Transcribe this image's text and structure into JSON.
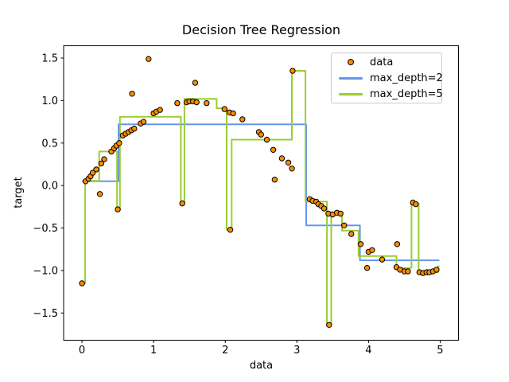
{
  "figure": {
    "title": "Decision Tree Regression",
    "xlabel": "data",
    "ylabel": "target"
  },
  "legend": {
    "position": "upper right",
    "items": [
      {
        "label": "data",
        "kind": "marker",
        "color": "#ff8c00",
        "edge_color": "#000000"
      },
      {
        "label": "max_depth=2",
        "kind": "line",
        "color": "#6495ed"
      },
      {
        "label": "max_depth=5",
        "kind": "line",
        "color": "#9acd32"
      }
    ]
  },
  "axes": {
    "xlim": [
      -0.256,
      5.256
    ],
    "ylim": [
      -1.82,
      1.645
    ],
    "spine_color": "#000000",
    "xticks": [
      {
        "value": 0,
        "label": "0"
      },
      {
        "value": 1,
        "label": "1"
      },
      {
        "value": 2,
        "label": "2"
      },
      {
        "value": 3,
        "label": "3"
      },
      {
        "value": 4,
        "label": "4"
      },
      {
        "value": 5,
        "label": "5"
      }
    ],
    "yticks": [
      {
        "value": 1.5,
        "label": "1.5"
      },
      {
        "value": 1.0,
        "label": "1.0"
      },
      {
        "value": 0.5,
        "label": "0.5"
      },
      {
        "value": 0.0,
        "label": "0.0"
      },
      {
        "value": -0.5,
        "label": "−0.5"
      },
      {
        "value": -1.0,
        "label": "−1.0"
      },
      {
        "value": -1.5,
        "label": "−1.5"
      }
    ]
  },
  "chart_data": {
    "type": "scatter",
    "title": "Decision Tree Regression",
    "xlabel": "data",
    "ylabel": "target",
    "grid": false,
    "legend_position": "upper right",
    "scatter": {
      "name": "data",
      "color": "#ff8c00",
      "edge_color": "#000000",
      "points": [
        [
          0.0,
          -1.15
        ],
        [
          0.05,
          0.05
        ],
        [
          0.09,
          0.08
        ],
        [
          0.12,
          0.11
        ],
        [
          0.15,
          0.15
        ],
        [
          0.2,
          0.19
        ],
        [
          0.25,
          -0.1
        ],
        [
          0.27,
          0.26
        ],
        [
          0.31,
          0.31
        ],
        [
          0.41,
          0.4
        ],
        [
          0.45,
          0.44
        ],
        [
          0.48,
          0.47
        ],
        [
          0.5,
          -0.28
        ],
        [
          0.52,
          0.5
        ],
        [
          0.57,
          0.59
        ],
        [
          0.61,
          0.61
        ],
        [
          0.65,
          0.63
        ],
        [
          0.69,
          0.65
        ],
        [
          0.7,
          1.08
        ],
        [
          0.73,
          0.67
        ],
        [
          0.82,
          0.73
        ],
        [
          0.86,
          0.75
        ],
        [
          0.93,
          1.49
        ],
        [
          1.0,
          0.85
        ],
        [
          1.04,
          0.87
        ],
        [
          1.09,
          0.89
        ],
        [
          1.33,
          0.97
        ],
        [
          1.4,
          -0.21
        ],
        [
          1.46,
          0.98
        ],
        [
          1.5,
          0.99
        ],
        [
          1.55,
          0.99
        ],
        [
          1.58,
          1.21
        ],
        [
          1.6,
          0.98
        ],
        [
          1.74,
          0.97
        ],
        [
          1.99,
          0.9
        ],
        [
          2.06,
          0.86
        ],
        [
          2.07,
          -0.52
        ],
        [
          2.11,
          0.85
        ],
        [
          2.24,
          0.78
        ],
        [
          2.47,
          0.63
        ],
        [
          2.5,
          0.6
        ],
        [
          2.58,
          0.54
        ],
        [
          2.67,
          0.42
        ],
        [
          2.69,
          0.07
        ],
        [
          2.79,
          0.32
        ],
        [
          2.88,
          0.27
        ],
        [
          2.93,
          0.2
        ],
        [
          2.94,
          1.35
        ],
        [
          3.18,
          -0.16
        ],
        [
          3.22,
          -0.18
        ],
        [
          3.27,
          -0.19
        ],
        [
          3.3,
          -0.22
        ],
        [
          3.34,
          -0.24
        ],
        [
          3.38,
          -0.27
        ],
        [
          3.44,
          -0.33
        ],
        [
          3.45,
          -1.64
        ],
        [
          3.5,
          -0.34
        ],
        [
          3.56,
          -0.32
        ],
        [
          3.61,
          -0.33
        ],
        [
          3.66,
          -0.47
        ],
        [
          3.76,
          -0.57
        ],
        [
          3.89,
          -0.69
        ],
        [
          3.98,
          -0.97
        ],
        [
          4.0,
          -0.78
        ],
        [
          4.05,
          -0.76
        ],
        [
          4.19,
          -0.87
        ],
        [
          4.39,
          -0.96
        ],
        [
          4.4,
          -0.69
        ],
        [
          4.44,
          -0.99
        ],
        [
          4.5,
          -1.01
        ],
        [
          4.55,
          -1.01
        ],
        [
          4.62,
          -0.2
        ],
        [
          4.66,
          -0.22
        ],
        [
          4.71,
          -1.02
        ],
        [
          4.76,
          -1.03
        ],
        [
          4.81,
          -1.02
        ],
        [
          4.85,
          -1.02
        ],
        [
          4.9,
          -1.01
        ],
        [
          4.95,
          -0.99
        ]
      ]
    },
    "series": [
      {
        "name": "max_depth=2",
        "color": "#6495ed",
        "line_width": 2,
        "steps": [
          [
            0.0,
            0.51,
            0.05
          ],
          [
            0.51,
            3.13,
            0.72
          ],
          [
            3.13,
            3.88,
            -0.47
          ],
          [
            3.88,
            4.99,
            -0.88
          ]
        ]
      },
      {
        "name": "max_depth=5",
        "color": "#9acd32",
        "line_width": 2,
        "steps": [
          [
            0.0,
            0.045,
            -1.15
          ],
          [
            0.045,
            0.24,
            0.055
          ],
          [
            0.24,
            0.49,
            0.4
          ],
          [
            0.49,
            0.53,
            -0.28
          ],
          [
            0.53,
            1.38,
            0.81
          ],
          [
            1.38,
            1.43,
            -0.21
          ],
          [
            1.43,
            1.88,
            1.02
          ],
          [
            1.88,
            2.02,
            0.91
          ],
          [
            2.02,
            2.09,
            -0.52
          ],
          [
            2.09,
            2.93,
            0.54
          ],
          [
            2.93,
            3.12,
            1.35
          ],
          [
            3.12,
            3.42,
            -0.19
          ],
          [
            3.42,
            3.48,
            -1.64
          ],
          [
            3.48,
            3.63,
            -0.34
          ],
          [
            3.63,
            3.86,
            -0.53
          ],
          [
            3.86,
            4.39,
            -0.83
          ],
          [
            4.39,
            4.6,
            -0.97
          ],
          [
            4.6,
            4.7,
            -0.21
          ],
          [
            4.7,
            4.97,
            -1.02
          ],
          [
            4.97,
            4.99,
            -0.95
          ]
        ]
      }
    ]
  }
}
